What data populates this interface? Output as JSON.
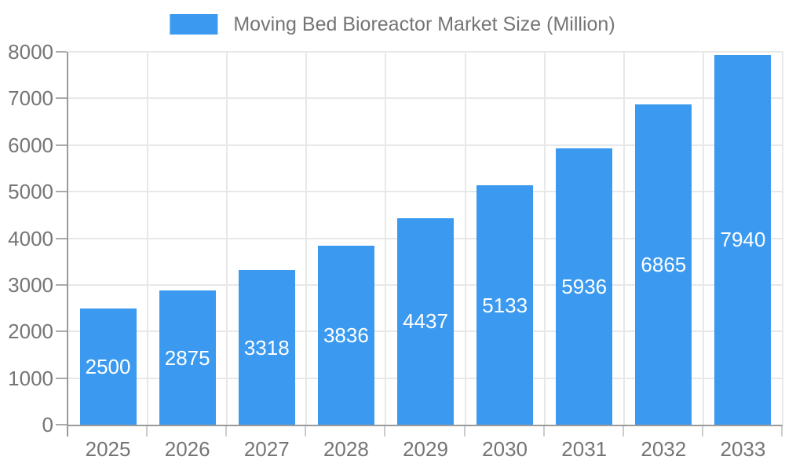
{
  "legend": {
    "items": [
      {
        "label": "Moving Bed Bioreactor Market Size (Million)",
        "swatch_color": "#3b9aef"
      }
    ],
    "position": "top-center"
  },
  "chart_data": {
    "type": "bar",
    "title": "Moving Bed Bioreactor Market Size (Million)",
    "categories": [
      "2025",
      "2026",
      "2027",
      "2028",
      "2029",
      "2030",
      "2031",
      "2032",
      "2033"
    ],
    "series": [
      {
        "name": "Moving Bed Bioreactor Market Size (Million)",
        "values": [
          2500,
          2875,
          3318,
          3836,
          4437,
          5133,
          5936,
          6865,
          7940
        ]
      }
    ],
    "value_labels_visible": true,
    "xlabel": "",
    "ylabel": "",
    "ylim": [
      0,
      8000
    ],
    "y_ticks": [
      0,
      1000,
      2000,
      3000,
      4000,
      5000,
      6000,
      7000,
      8000
    ],
    "grid": true,
    "legend_position": "top-center",
    "colors": {
      "bar": "#3b9aef",
      "value_label": "#ffffff",
      "axis_label": "#757575",
      "grid_line": "#e8e8e8",
      "axis_line": "#9a9a9a",
      "tick_mark": "#cccccc"
    }
  }
}
